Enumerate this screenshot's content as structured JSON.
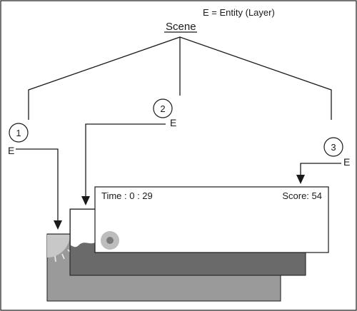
{
  "legend": "E = Entity (Layer)",
  "root_label": "Scene",
  "entity_label": "E",
  "entities": [
    {
      "number": "1",
      "letter": "E"
    },
    {
      "number": "2",
      "letter": "E"
    },
    {
      "number": "3",
      "letter": "E"
    }
  ],
  "hud": {
    "time_text": "Time : 0 : 29",
    "score_text": "Score: 54"
  },
  "colors": {
    "stroke": "#1a1a1a",
    "back_layer": "#9a9a9a",
    "middle_layer": "#6a6a6a",
    "front_layer": "#ffffff",
    "sun": "#c8c8c8",
    "ball_outer": "#bdbdbd",
    "ball_inner": "#7a7a7a"
  }
}
